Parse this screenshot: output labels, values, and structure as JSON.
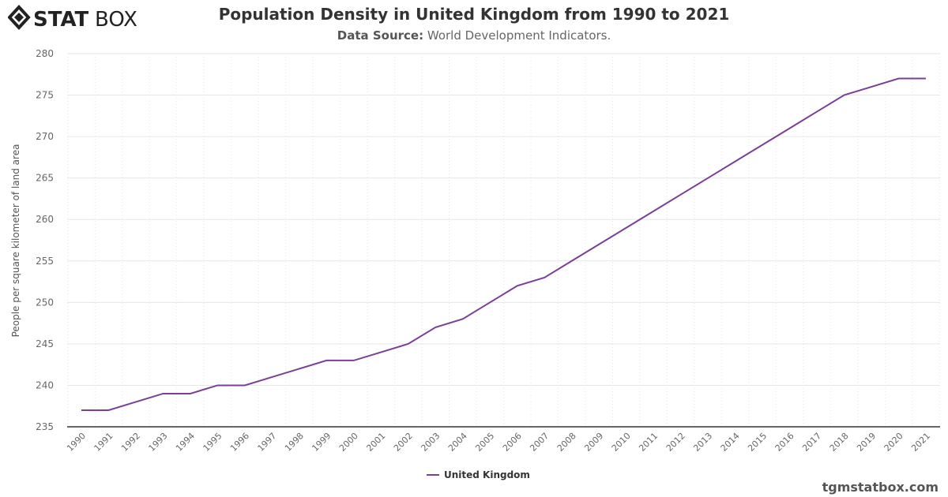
{
  "logo_text": "STATBOX",
  "header": {
    "title": "Population Density in United Kingdom from 1990 to 2021",
    "subtitle_label": "Data Source:",
    "subtitle_value": "World Development Indicators."
  },
  "credit": "tgmstatbox.com",
  "colors": {
    "series": "#7b3f98",
    "grid": "#e6e6e6",
    "axis": "#333333"
  },
  "chart_data": {
    "type": "line",
    "title": "Population Density in United Kingdom from 1990 to 2021",
    "xlabel": "",
    "ylabel": "People per square kilometer of land area",
    "ylim": [
      235,
      280
    ],
    "yticks": [
      235,
      240,
      245,
      250,
      255,
      260,
      265,
      270,
      275,
      280
    ],
    "grid": true,
    "legend": "bottom-center",
    "x": [
      "1990",
      "1991",
      "1992",
      "1993",
      "1994",
      "1995",
      "1996",
      "1997",
      "1998",
      "1999",
      "2000",
      "2001",
      "2002",
      "2003",
      "2004",
      "2005",
      "2006",
      "2007",
      "2008",
      "2009",
      "2010",
      "2011",
      "2012",
      "2013",
      "2014",
      "2015",
      "2016",
      "2017",
      "2018",
      "2019",
      "2020",
      "2021"
    ],
    "series": [
      {
        "name": "United Kingdom",
        "values": [
          237,
          237,
          238,
          239,
          239,
          240,
          240,
          241,
          242,
          243,
          243,
          244,
          245,
          247,
          248,
          250,
          252,
          253,
          255,
          257,
          259,
          261,
          263,
          265,
          267,
          269,
          271,
          273,
          275,
          276,
          277,
          277
        ]
      }
    ]
  }
}
